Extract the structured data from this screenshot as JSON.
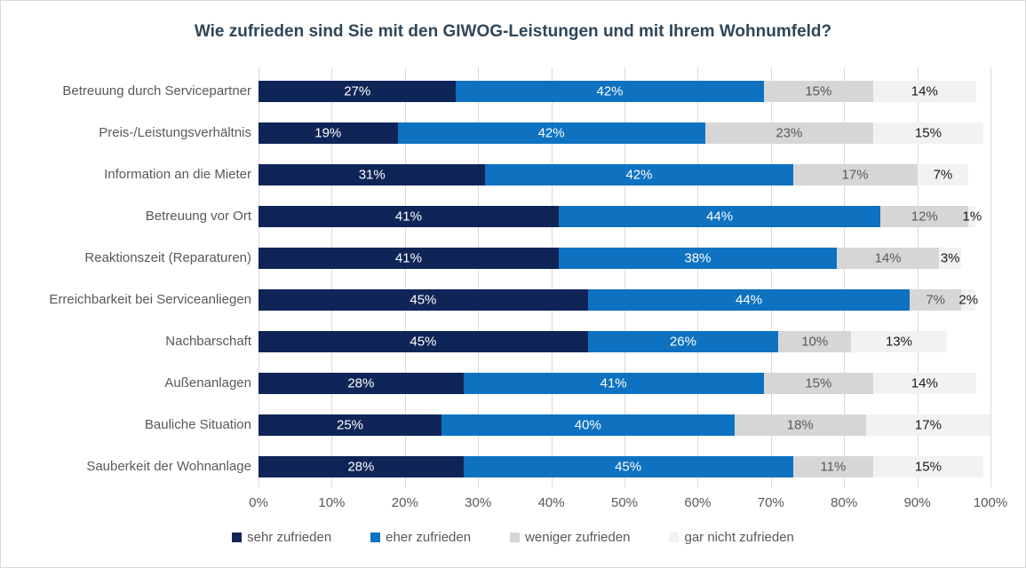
{
  "chart_data": {
    "type": "bar",
    "variant": "horizontal_stacked",
    "title": "Wie zufrieden sind Sie mit den GIWOG-Leistungen und mit Ihrem Wohnumfeld?",
    "categories": [
      "Betreuung durch Servicepartner",
      "Preis-/Leistungsverhältnis",
      "Information an die Mieter",
      "Betreuung vor Ort",
      "Reaktionszeit (Reparaturen)",
      "Erreichbarkeit bei Serviceanliegen",
      "Nachbarschaft",
      "Außenanlagen",
      "Bauliche Situation",
      "Sauberkeit der Wohnanlage"
    ],
    "series": [
      {
        "name": "sehr zufrieden",
        "color": "#0f2557",
        "label_color": "#ffffff",
        "values": [
          27,
          19,
          31,
          41,
          41,
          45,
          45,
          28,
          25,
          28
        ]
      },
      {
        "name": "eher zufrieden",
        "color": "#0e72c0",
        "label_color": "#ffffff",
        "values": [
          42,
          42,
          42,
          44,
          38,
          44,
          26,
          41,
          40,
          45
        ]
      },
      {
        "name": "weniger zufrieden",
        "color": "#d6d6d6",
        "label_color": "#595959",
        "values": [
          15,
          23,
          17,
          12,
          14,
          7,
          10,
          15,
          18,
          11
        ]
      },
      {
        "name": "gar nicht zufrieden",
        "color": "#f2f2f2",
        "label_color": "#1a1a1a",
        "values": [
          14,
          15,
          7,
          1,
          3,
          2,
          13,
          14,
          17,
          15
        ]
      }
    ],
    "value_suffix": "%",
    "x_axis": {
      "min": 0,
      "max": 100,
      "ticks": [
        "0%",
        "10%",
        "20%",
        "30%",
        "40%",
        "50%",
        "60%",
        "70%",
        "80%",
        "90%",
        "100%"
      ]
    },
    "grid": true,
    "legend_position": "bottom",
    "colors": {
      "title": "#304659",
      "axis_text": "#595959",
      "gridline": "#d9d9d9",
      "frame_border": "#d9d9d9",
      "background": "#ffffff"
    }
  }
}
